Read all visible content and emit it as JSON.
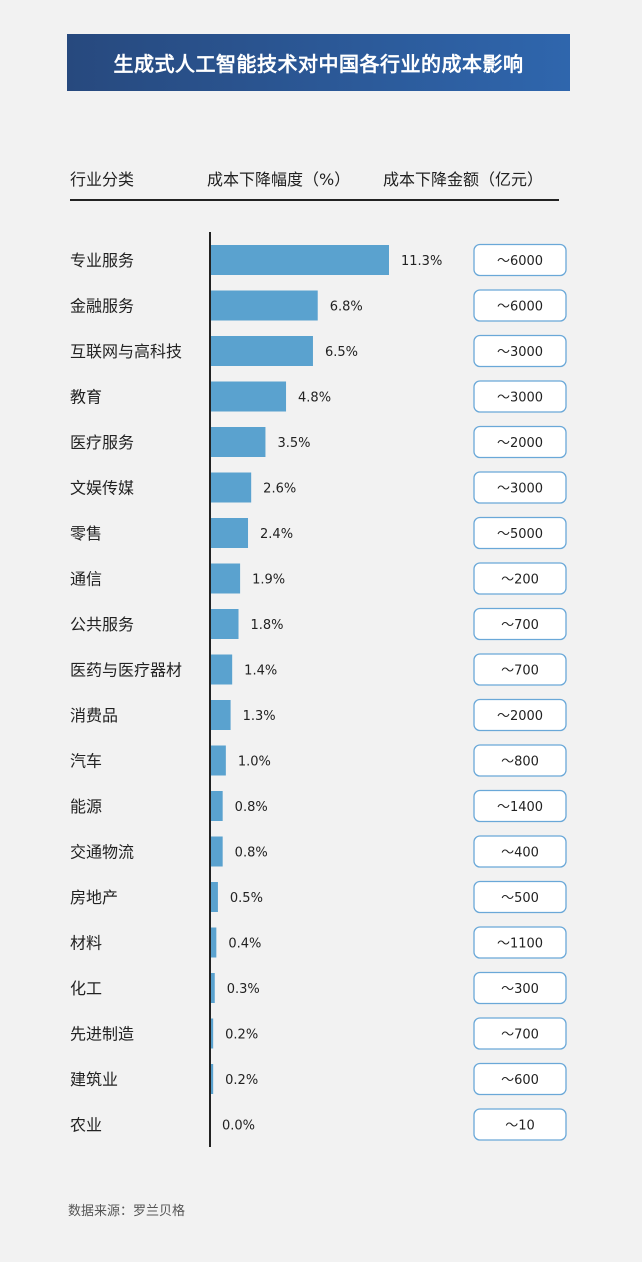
{
  "title": "生成式人工智能技术对中国各行业的成本影响",
  "headers": {
    "industry": "行业分类",
    "rate": "成本下降幅度（%）",
    "amount": "成本下降金额（亿元）"
  },
  "footer": "数据来源：罗兰贝格",
  "colors": {
    "banner_start": "#27497e",
    "banner_end": "#2f66ad",
    "bar": "#5aa2cf",
    "pill_border": "#6aa8d8",
    "axis": "#222222",
    "background": "#f2f2f2"
  },
  "chart_data": {
    "type": "bar",
    "orientation": "horizontal",
    "categories": [
      "专业服务",
      "金融服务",
      "互联网与高科技",
      "教育",
      "医疗服务",
      "文娱传媒",
      "零售",
      "通信",
      "公共服务",
      "医药与医疗器材",
      "消费品",
      "汽车",
      "能源",
      "交通物流",
      "房地产",
      "材料",
      "化工",
      "先进制造",
      "建筑业",
      "农业"
    ],
    "values": [
      11.3,
      6.8,
      6.5,
      4.8,
      3.5,
      2.6,
      2.4,
      1.9,
      1.8,
      1.4,
      1.3,
      1.0,
      0.8,
      0.8,
      0.5,
      0.4,
      0.3,
      0.2,
      0.2,
      0.0
    ],
    "value_labels": [
      "11.3%",
      "6.8%",
      "6.5%",
      "4.8%",
      "3.5%",
      "2.6%",
      "2.4%",
      "1.9%",
      "1.8%",
      "1.4%",
      "1.3%",
      "1.0%",
      "0.8%",
      "0.8%",
      "0.5%",
      "0.4%",
      "0.3%",
      "0.2%",
      "0.2%",
      "0.0%"
    ],
    "amount_labels": [
      "～6000",
      "～6000",
      "～3000",
      "～3000",
      "～2000",
      "～3000",
      "～5000",
      "～200",
      "～700",
      "～700",
      "～2000",
      "～800",
      "～1400",
      "～400",
      "～500",
      "～1100",
      "～300",
      "～700",
      "～600",
      "～10"
    ],
    "amounts": [
      6000,
      6000,
      3000,
      3000,
      2000,
      3000,
      5000,
      200,
      700,
      700,
      2000,
      800,
      1400,
      400,
      500,
      1100,
      300,
      700,
      600,
      10
    ],
    "xlim": [
      0,
      11.3
    ],
    "grid": false,
    "legend": "none"
  }
}
